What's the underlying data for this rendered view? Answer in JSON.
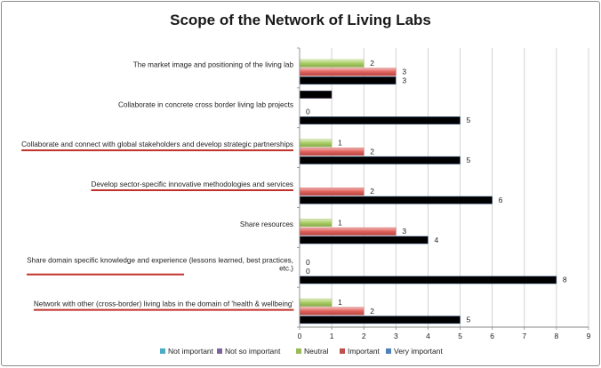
{
  "chart_data": {
    "type": "bar",
    "orientation": "horizontal",
    "title": "Scope of the Network of Living Labs",
    "xlabel": "",
    "ylabel": "",
    "xlim": [
      0,
      9
    ],
    "x_ticks": [
      0,
      1,
      2,
      3,
      4,
      5,
      6,
      7,
      8,
      9
    ],
    "grid": "vertical",
    "legend_position": "bottom",
    "categories": [
      "The market image and positioning of the living lab",
      "Collaborate in concrete cross border living lab projects",
      "Collaborate and connect with global stakeholders and develop strategic partnerships",
      "Develop sector-specific innovative methodologies and services",
      "Share resources",
      "Share domain specific knowledge and experience (lessons learned, best practices, etc.)",
      "Network with other (cross-border) living labs in the domain of 'health & wellbeing'"
    ],
    "category_label_lines": [
      [
        "The market image and positioning of the living lab"
      ],
      [
        "Collaborate in concrete cross border living lab projects"
      ],
      [
        "Collaborate and connect with global stakeholders and develop strategic partnerships"
      ],
      [
        "Develop sector-specific innovative methodologies and services"
      ],
      [
        "Share resources"
      ],
      [
        "Share domain specific knowledge and experience (lessons learned, best practices,",
        "etc.)"
      ],
      [
        "Network with other (cross-border) living labs in the domain of 'health & wellbeing'"
      ]
    ],
    "underlined_categories": [
      2,
      3,
      5,
      6
    ],
    "series": [
      {
        "name": "Not important",
        "color": "#4bacc6",
        "values": [
          null,
          null,
          null,
          null,
          null,
          null,
          null
        ]
      },
      {
        "name": "Not so important",
        "color": "#8064a2",
        "values": [
          null,
          1,
          null,
          null,
          null,
          null,
          null
        ]
      },
      {
        "name": "Neutral",
        "color": "#9bbb59",
        "values": [
          2,
          null,
          1,
          null,
          1,
          0,
          1
        ]
      },
      {
        "name": "Important",
        "color": "#c0504d",
        "values": [
          3,
          0,
          2,
          2,
          3,
          0,
          2
        ]
      },
      {
        "name": "Very important",
        "color": "#4f81bd",
        "values": [
          3,
          5,
          5,
          6,
          4,
          8,
          5
        ]
      }
    ]
  }
}
